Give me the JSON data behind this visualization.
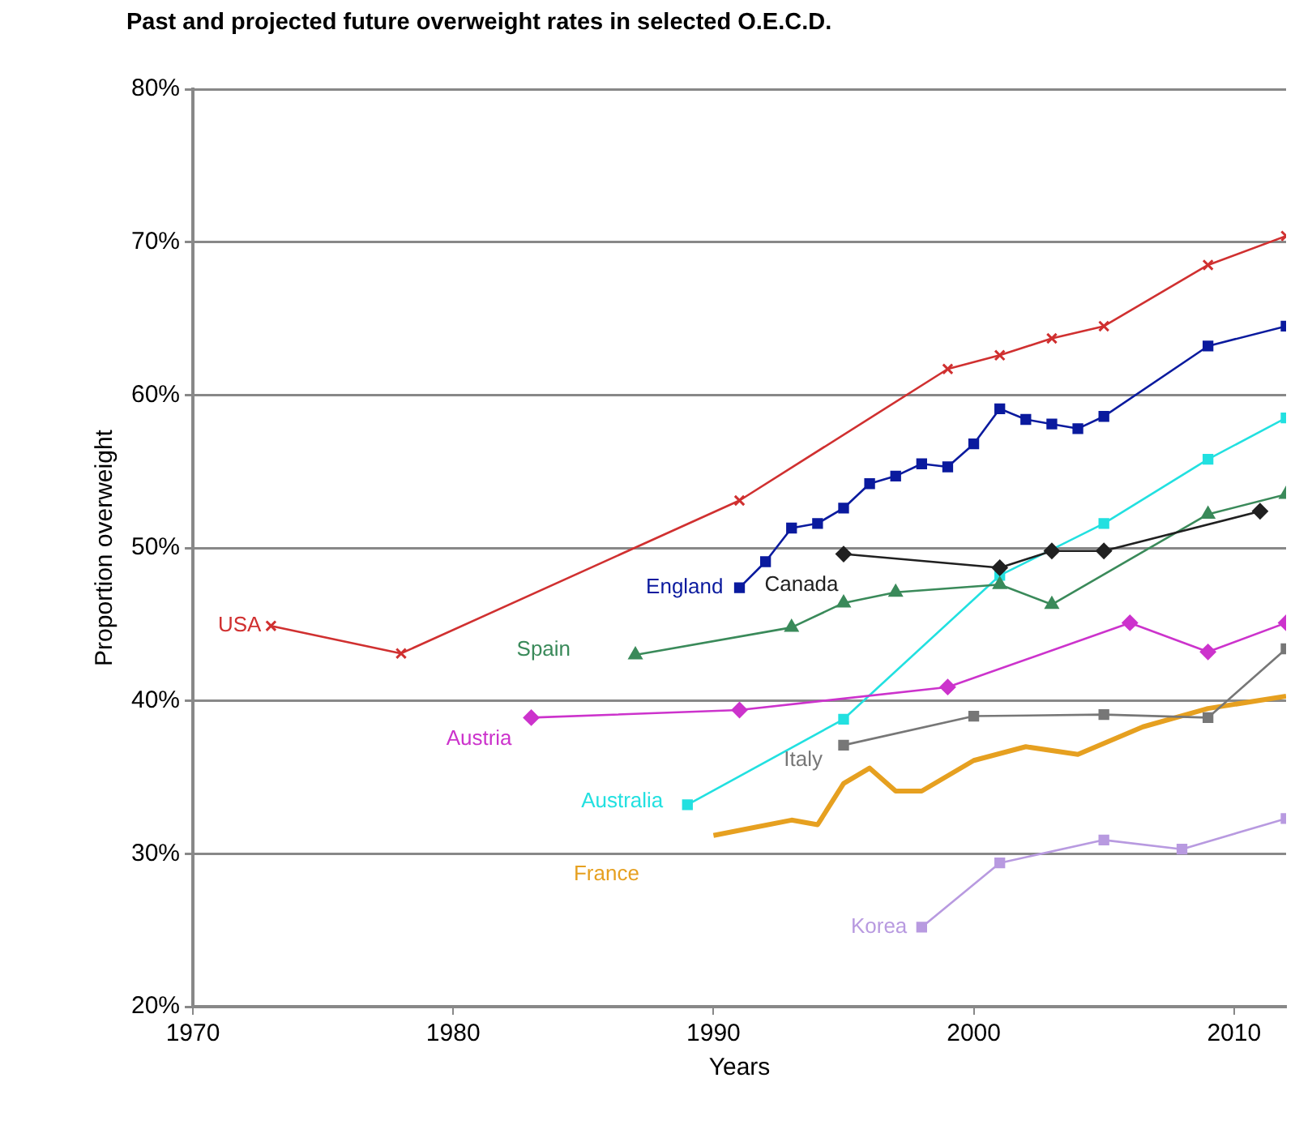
{
  "chart_data": {
    "type": "line",
    "title": "Past and projected future overweight rates in selected O.E.C.D.",
    "xlabel": "Years",
    "ylabel": "Proportion overweight",
    "xlim": [
      1970,
      2012
    ],
    "xticks": [
      1970,
      1980,
      1990,
      2000,
      2010
    ],
    "ylim": [
      20,
      80
    ],
    "yticks": [
      {
        "value": 20,
        "label": "20%"
      },
      {
        "value": 30,
        "label": "30%"
      },
      {
        "value": 40,
        "label": "40%"
      },
      {
        "value": 50,
        "label": "50%"
      },
      {
        "value": 60,
        "label": "60%"
      },
      {
        "value": 70,
        "label": "70%"
      },
      {
        "value": 80,
        "label": "80%"
      }
    ],
    "grid": "y",
    "legend": false,
    "series": [
      {
        "name": "USA",
        "color": "#d03030",
        "marker": "cross",
        "x": [
          1973,
          1978,
          1991,
          1999,
          2001,
          2003,
          2005,
          2009,
          2012
        ],
        "values": [
          44.9,
          43.1,
          53.1,
          61.7,
          62.6,
          63.7,
          64.5,
          68.5,
          70.4
        ]
      },
      {
        "name": "England",
        "color": "#0a1a9e",
        "marker": "square",
        "x": [
          1991,
          1992,
          1993,
          1994,
          1995,
          1996,
          1997,
          1998,
          1999,
          2000,
          2001,
          2002,
          2003,
          2004,
          2005,
          2009,
          2012
        ],
        "values": [
          47.4,
          49.1,
          51.3,
          51.6,
          52.6,
          54.2,
          54.7,
          55.5,
          55.3,
          56.8,
          59.1,
          58.4,
          58.1,
          57.8,
          58.6,
          63.2,
          64.5
        ]
      },
      {
        "name": "Canada",
        "color": "#202020",
        "marker": "diamond",
        "x": [
          1995,
          2001,
          2003,
          2005,
          2011
        ],
        "values": [
          49.6,
          48.7,
          49.8,
          49.8,
          52.4
        ]
      },
      {
        "name": "Spain",
        "color": "#3a8a5a",
        "marker": "triangle",
        "x": [
          1987,
          1993,
          1995,
          1997,
          2001,
          2003,
          2009,
          2012
        ],
        "values": [
          43.0,
          44.8,
          46.4,
          47.1,
          47.6,
          46.3,
          52.2,
          53.5
        ]
      },
      {
        "name": "Austria",
        "color": "#cc33cc",
        "marker": "diamond",
        "x": [
          1983,
          1991,
          1999,
          2006,
          2009,
          2012
        ],
        "values": [
          38.9,
          39.4,
          40.9,
          45.1,
          43.2,
          45.1
        ]
      },
      {
        "name": "Australia",
        "color": "#22e0e0",
        "marker": "square",
        "x": [
          1989,
          1995,
          2001,
          2005,
          2009,
          2012
        ],
        "values": [
          33.2,
          38.8,
          48.2,
          51.6,
          55.8,
          58.5
        ]
      },
      {
        "name": "Italy",
        "color": "#777777",
        "marker": "square",
        "x": [
          1995,
          2000,
          2005,
          2009,
          2012
        ],
        "values": [
          37.1,
          39.0,
          39.1,
          38.9,
          43.4
        ]
      },
      {
        "name": "France",
        "color": "#e6a020",
        "marker": "none",
        "x": [
          1990,
          1993,
          1994,
          1995,
          1996,
          1997,
          1998,
          2000,
          2002,
          2004,
          2006.5,
          2009,
          2012
        ],
        "values": [
          31.2,
          32.2,
          31.9,
          34.6,
          35.6,
          34.1,
          34.1,
          36.1,
          37.0,
          36.5,
          38.3,
          39.5,
          40.3
        ]
      },
      {
        "name": "Korea",
        "color": "#b89ae0",
        "marker": "square",
        "x": [
          1998,
          2001,
          2005,
          2008,
          2012
        ],
        "values": [
          25.2,
          29.4,
          30.9,
          30.3,
          32.3
        ]
      }
    ]
  }
}
